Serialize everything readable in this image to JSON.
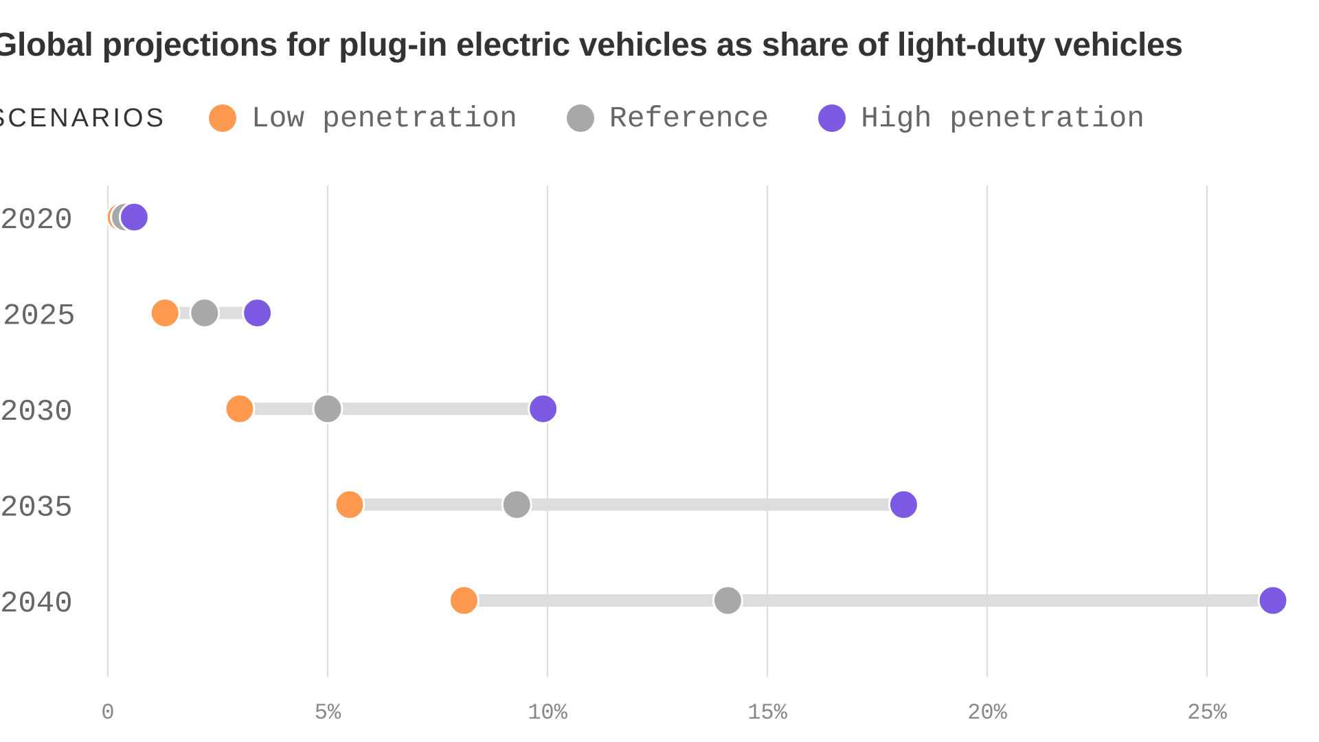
{
  "colors": {
    "low": "#ff9950",
    "reference": "#a8a8a8",
    "high": "#7c5ae2",
    "range_bar": "#dddddd",
    "grid": "#dddddd"
  },
  "legend": {
    "heading": "SCENARIOS",
    "items": [
      {
        "key": "low",
        "label": "Low penetration"
      },
      {
        "key": "reference",
        "label": "Reference"
      },
      {
        "key": "high",
        "label": "High penetration"
      }
    ]
  },
  "chart_data": {
    "type": "dumbbell",
    "title": "Global projections for plug-in electric vehicles as share of light-duty vehicles",
    "x_unit": "percent",
    "xlim": [
      0,
      27
    ],
    "x_ticks": [
      0,
      5,
      10,
      15,
      20,
      25
    ],
    "x_tick_labels": [
      "0",
      "5%",
      "10%",
      "15%",
      "20%",
      "25%"
    ],
    "grid": "vertical",
    "legend_position": "top-left",
    "categories": [
      "2020",
      "2025",
      "2030",
      "2035",
      "2040"
    ],
    "series": [
      {
        "name": "Low penetration",
        "key": "low",
        "values": [
          0.3,
          1.3,
          3.0,
          5.5,
          8.1
        ]
      },
      {
        "name": "Reference",
        "key": "reference",
        "values": [
          0.4,
          2.2,
          5.0,
          9.3,
          14.1
        ]
      },
      {
        "name": "High penetration",
        "key": "high",
        "values": [
          0.6,
          3.4,
          9.9,
          18.1,
          26.5
        ]
      }
    ]
  }
}
